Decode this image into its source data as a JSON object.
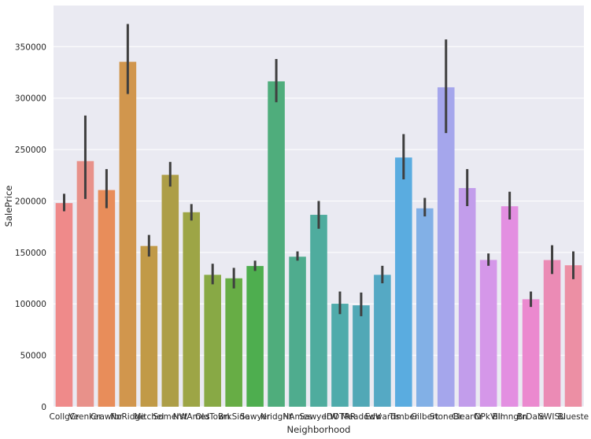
{
  "chart_data": {
    "type": "bar",
    "xlabel": "Neighborhood",
    "ylabel": "SalePrice",
    "ylim": [
      0,
      390000
    ],
    "yticks": [
      0,
      50000,
      100000,
      150000,
      200000,
      250000,
      300000,
      350000
    ],
    "ytick_labels": [
      "0",
      "50000",
      "100000",
      "150000",
      "200000",
      "250000",
      "300000",
      "350000"
    ],
    "grid": true,
    "categories": [
      "CollgCr",
      "Veenker",
      "Crawfor",
      "NoRidge",
      "Mitchel",
      "Somerst",
      "NWAmes",
      "OldTown",
      "BrkSide",
      "Sawyer",
      "NridgHt",
      "NAmes",
      "SawyerW",
      "IDOTRR",
      "MeadowV",
      "Edwards",
      "Timber",
      "Gilbert",
      "StoneBr",
      "ClearCr",
      "NPkVill",
      "Blmngtn",
      "BrDale",
      "SWISU",
      "Blueste"
    ],
    "values": [
      197965,
      238773,
      210625,
      335295,
      156270,
      225380,
      189050,
      128225,
      124834,
      136793,
      316271,
      145847,
      186556,
      100124,
      98576,
      128220,
      242247,
      192855,
      310499,
      212565,
      142694,
      194871,
      104494,
      142591,
      137500
    ],
    "ci_low": [
      190000,
      202000,
      193000,
      304000,
      146000,
      214000,
      181000,
      119000,
      115000,
      132000,
      296000,
      142000,
      173000,
      90000,
      88000,
      120000,
      221000,
      185000,
      266000,
      195000,
      137000,
      182000,
      97000,
      129000,
      124000
    ],
    "ci_high": [
      207000,
      283000,
      231000,
      372000,
      167000,
      238000,
      197000,
      139000,
      135000,
      142000,
      338000,
      151000,
      200000,
      112000,
      111000,
      137000,
      265000,
      203000,
      357000,
      231000,
      149000,
      209000,
      112000,
      157000,
      151000
    ],
    "colors": [
      "#ef8a8a",
      "#e8918a",
      "#e88d5a",
      "#d1964d",
      "#c19a47",
      "#ad9e47",
      "#9da546",
      "#88a945",
      "#67ad45",
      "#4eae4f",
      "#4fad7c",
      "#4fac8e",
      "#4fac9e",
      "#4fabab",
      "#51a8b6",
      "#55a9c4",
      "#5aace0",
      "#82b0e6",
      "#a5a6ec",
      "#c29deb",
      "#d597e9",
      "#e38fe1",
      "#eb89cf",
      "#eb8bb5",
      "#ec8fa4"
    ]
  }
}
